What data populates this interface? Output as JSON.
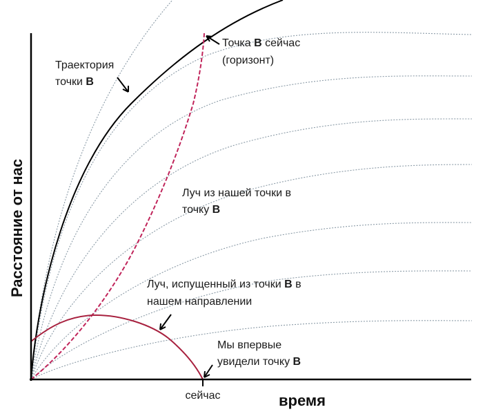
{
  "axes": {
    "x_title": "время",
    "y_title": "Расстояние от нас",
    "x_tick_now": "сейчас"
  },
  "labels": {
    "trajectory_line1": "Траектория",
    "trajectory_line2_prefix": "точки ",
    "point_letter": "B",
    "now_line1_prefix": "Точка ",
    "now_line1_suffix": " сейчас",
    "now_line2": "(горизонт)",
    "ray_from_us_line1": "Луч из нашей точки в",
    "ray_from_us_line2_prefix": "точку ",
    "ray_from_b_line1_prefix": "Луч, испущенный из точки ",
    "ray_from_b_line1_suffix": " в",
    "ray_from_b_line2": "нашем направлении",
    "first_seen_line1": "Мы впервые",
    "first_seen_line2_prefix": "увидели точку "
  },
  "colors": {
    "axes": "#000000",
    "trajectory": "#000000",
    "comoving_lines": "#8a9aa6",
    "ray_from_us": "#c0245a",
    "ray_from_b": "#a8213f",
    "arrows": "#000000"
  },
  "icons": {
    "annotation_arrow": "arrow-icon"
  }
}
